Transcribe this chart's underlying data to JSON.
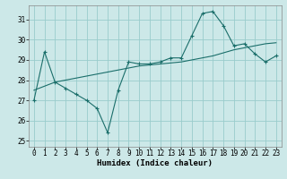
{
  "xlabel": "Humidex (Indice chaleur)",
  "background_color": "#cce8e8",
  "grid_color": "#99cccc",
  "line_color": "#1a6e6a",
  "xlim": [
    -0.5,
    23.5
  ],
  "ylim": [
    24.7,
    31.7
  ],
  "yticks": [
    25,
    26,
    27,
    28,
    29,
    30,
    31
  ],
  "xticks": [
    0,
    1,
    2,
    3,
    4,
    5,
    6,
    7,
    8,
    9,
    10,
    11,
    12,
    13,
    14,
    15,
    16,
    17,
    18,
    19,
    20,
    21,
    22,
    23
  ],
  "line1_x": [
    0,
    1,
    2,
    3,
    4,
    5,
    6,
    7,
    8,
    9,
    10,
    11,
    12,
    13,
    14,
    15,
    16,
    17,
    18,
    19,
    20,
    21,
    22,
    23
  ],
  "line1_y": [
    27.0,
    29.4,
    27.9,
    27.6,
    27.3,
    27.0,
    26.6,
    25.4,
    27.5,
    28.9,
    28.8,
    28.8,
    28.9,
    29.1,
    29.1,
    30.2,
    31.3,
    31.4,
    30.7,
    29.7,
    29.8,
    29.3,
    28.9,
    29.2
  ],
  "line2_x": [
    0,
    1,
    2,
    3,
    4,
    5,
    6,
    7,
    8,
    9,
    10,
    11,
    12,
    13,
    14,
    15,
    16,
    17,
    18,
    19,
    20,
    21,
    22,
    23
  ],
  "line2_y": [
    27.5,
    27.7,
    27.9,
    28.0,
    28.1,
    28.2,
    28.3,
    28.4,
    28.5,
    28.6,
    28.7,
    28.75,
    28.8,
    28.85,
    28.9,
    29.0,
    29.1,
    29.2,
    29.35,
    29.5,
    29.6,
    29.7,
    29.8,
    29.85
  ],
  "tick_fontsize": 5.5,
  "xlabel_fontsize": 6.5
}
